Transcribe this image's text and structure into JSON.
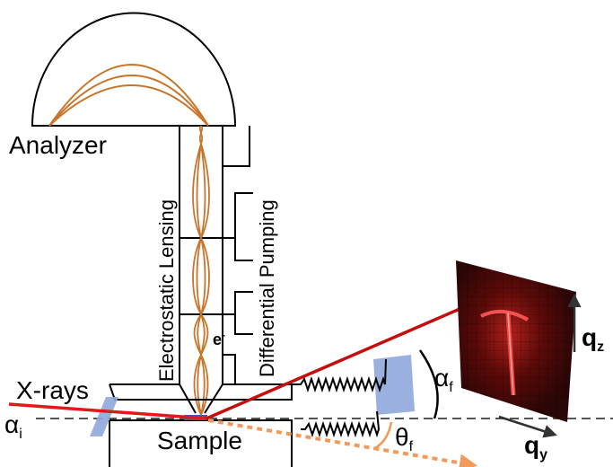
{
  "labels": {
    "analyzer": "Analyzer",
    "electrostatic_lensing": "Electrostatic Lensing",
    "differential_pumping": "Differential Pumping",
    "electron": "e",
    "electron_sup": "-",
    "xrays": "X-rays",
    "alpha_i": "α",
    "alpha_i_sub": "i",
    "sample": "Sample",
    "alpha_f": "α",
    "alpha_f_sub": "f",
    "theta_f": "θ",
    "theta_f_sub": "f",
    "qz": "q",
    "qz_sub": "z",
    "qy": "q",
    "qy_sub": "y"
  },
  "colors": {
    "line": "#000000",
    "electron_path": "#c8742a",
    "incident_beam": "#e01a1a",
    "scattered_beam": "#c40e0e",
    "offspecular_beam": "#f29a5a",
    "window": "#8fa8dc",
    "detector_bg": "#2a0606",
    "detector_hot": "#ff4a4a",
    "dashed_line": "#555555",
    "arrow_grey": "#333333"
  }
}
